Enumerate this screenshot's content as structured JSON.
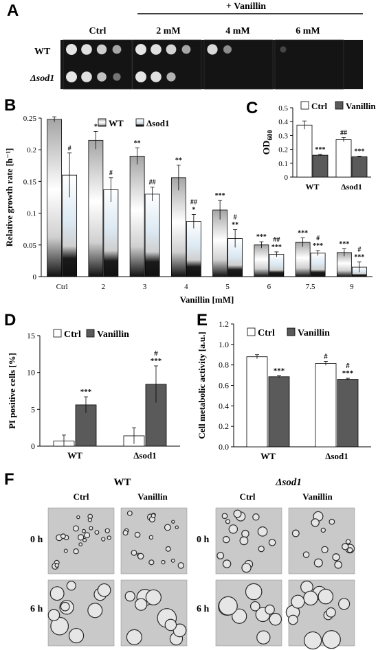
{
  "panel_letters": {
    "A": "A",
    "B": "B",
    "C": "C",
    "D": "D",
    "E": "E",
    "F": "F"
  },
  "panel_a": {
    "treatment_label": "+ Vanillin",
    "columns": [
      "Ctrl",
      "2 mM",
      "4 mM",
      "6 mM"
    ],
    "rows": [
      "WT",
      "Δsod1"
    ],
    "spot_growth": [
      [
        [
          1.0,
          0.95,
          0.8,
          0.6
        ],
        [
          1.0,
          0.95,
          0.85,
          0.6
        ],
        [
          0.9,
          0.5,
          0,
          0
        ],
        [
          0.15,
          0,
          0,
          0
        ]
      ],
      [
        [
          1.0,
          0.95,
          0.7,
          0.4
        ],
        [
          1.0,
          0.95,
          0.65,
          0.0
        ],
        [
          0,
          0,
          0,
          0
        ],
        [
          0,
          0,
          0,
          0
        ]
      ]
    ]
  },
  "chart_data": [
    {
      "id": "B",
      "type": "bar",
      "ylabel": "Relative growth rate [h⁻¹]",
      "xlabel": "Vanillin [mM]",
      "categories": [
        "Ctrl",
        "2",
        "3",
        "4",
        "5",
        "6",
        "7.5",
        "9"
      ],
      "ylim": [
        0,
        0.25
      ],
      "yticks": [
        "0",
        "0.05",
        "0.1",
        "0.15",
        "0.2",
        "0.25"
      ],
      "series": [
        {
          "name": "WT",
          "values": [
            0.248,
            0.215,
            0.19,
            0.156,
            0.105,
            0.05,
            0.054,
            0.038
          ],
          "err": [
            0.004,
            0.014,
            0.013,
            0.02,
            0.015,
            0.005,
            0.007,
            0.006
          ],
          "annotations": [
            "",
            "*",
            "**",
            "**",
            "***",
            "***",
            "***",
            "***"
          ]
        },
        {
          "name": "Δsod1",
          "values": [
            0.16,
            0.137,
            0.13,
            0.087,
            0.06,
            0.035,
            0.037,
            0.015
          ],
          "err": [
            0.035,
            0.019,
            0.011,
            0.011,
            0.014,
            0.004,
            0.004,
            0.008
          ],
          "annotations": [
            [
              "#"
            ],
            [
              "#"
            ],
            [
              "##"
            ],
            [
              "##",
              "*"
            ],
            [
              "#",
              "**"
            ],
            [
              "##",
              "***"
            ],
            [
              "#",
              "***"
            ],
            [
              "#",
              "***"
            ]
          ]
        }
      ],
      "legend": "top-left"
    },
    {
      "id": "C",
      "type": "bar",
      "ylabel": "OD600",
      "categories": [
        "WT",
        "Δsod1"
      ],
      "ylim": [
        0,
        0.5
      ],
      "yticks": [
        "0",
        "0.1",
        "0.2",
        "0.3",
        "0.4",
        "0.5"
      ],
      "series": [
        {
          "name": "Ctrl",
          "values": [
            0.375,
            0.27
          ],
          "err": [
            0.03,
            0.015
          ],
          "annotations": [
            "",
            "##"
          ]
        },
        {
          "name": "Vanillin",
          "values": [
            0.158,
            0.147
          ],
          "err": [
            0.006,
            0.004
          ],
          "annotations": [
            "***",
            "***"
          ]
        }
      ],
      "legend": "top"
    },
    {
      "id": "D",
      "type": "bar",
      "ylabel": "PI positive cells [%]",
      "categories": [
        "WT",
        "Δsod1"
      ],
      "ylim": [
        0,
        15
      ],
      "yticks": [
        "0",
        "5",
        "10",
        "15"
      ],
      "series": [
        {
          "name": "Ctrl",
          "values": [
            0.7,
            1.4
          ],
          "err": [
            0.8,
            1.1
          ],
          "annotations": [
            "",
            ""
          ]
        },
        {
          "name": "Vanillin",
          "values": [
            5.6,
            8.4
          ],
          "err": [
            1.1,
            2.5
          ],
          "annotations": [
            [
              "***"
            ],
            [
              "#",
              "***"
            ]
          ]
        }
      ],
      "legend": "top"
    },
    {
      "id": "E",
      "type": "bar",
      "ylabel": "Cell metabolic activity [a.u.]",
      "categories": [
        "WT",
        "Δsod1"
      ],
      "ylim": [
        0,
        1.2
      ],
      "yticks": [
        "0.0",
        "0.2",
        "0.4",
        "0.6",
        "0.8",
        "1.0",
        "1.2"
      ],
      "series": [
        {
          "name": "Ctrl",
          "values": [
            0.88,
            0.815
          ],
          "err": [
            0.02,
            0.02
          ],
          "annotations": [
            [
              ""
            ],
            [
              "#"
            ]
          ]
        },
        {
          "name": "Vanillin",
          "values": [
            0.685,
            0.66
          ],
          "err": [
            0.01,
            0.01
          ],
          "annotations": [
            [
              "***"
            ],
            [
              "#",
              "***"
            ]
          ]
        }
      ],
      "legend": "top"
    }
  ],
  "panel_f": {
    "groups": [
      "WT",
      "Δsod1"
    ],
    "conditions": [
      "Ctrl",
      "Vanillin"
    ],
    "times": [
      "0 h",
      "6 h"
    ]
  },
  "colors": {
    "ctrl_fill": "#ffffff",
    "vanillin_fill": "#5a5a5a",
    "axis": "#000000",
    "plate_bg": "#141414",
    "micro_bg": "#c9c9c9"
  }
}
